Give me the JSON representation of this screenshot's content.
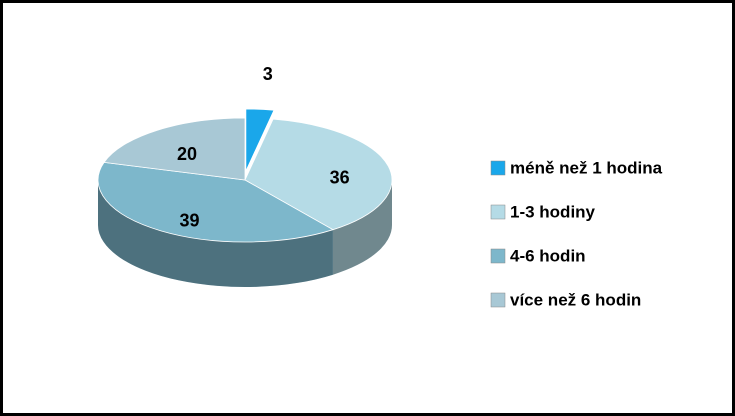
{
  "chart_data": {
    "type": "pie",
    "categories": [
      "méně než 1 hodina",
      "1-3 hodiny",
      "4-6 hodin",
      "více než 6 hodin"
    ],
    "values": [
      3,
      36,
      39,
      20
    ],
    "colors": [
      "#1aa7ea",
      "#b5dbe6",
      "#7db7cb",
      "#a8c8d5"
    ],
    "legend": "right"
  }
}
